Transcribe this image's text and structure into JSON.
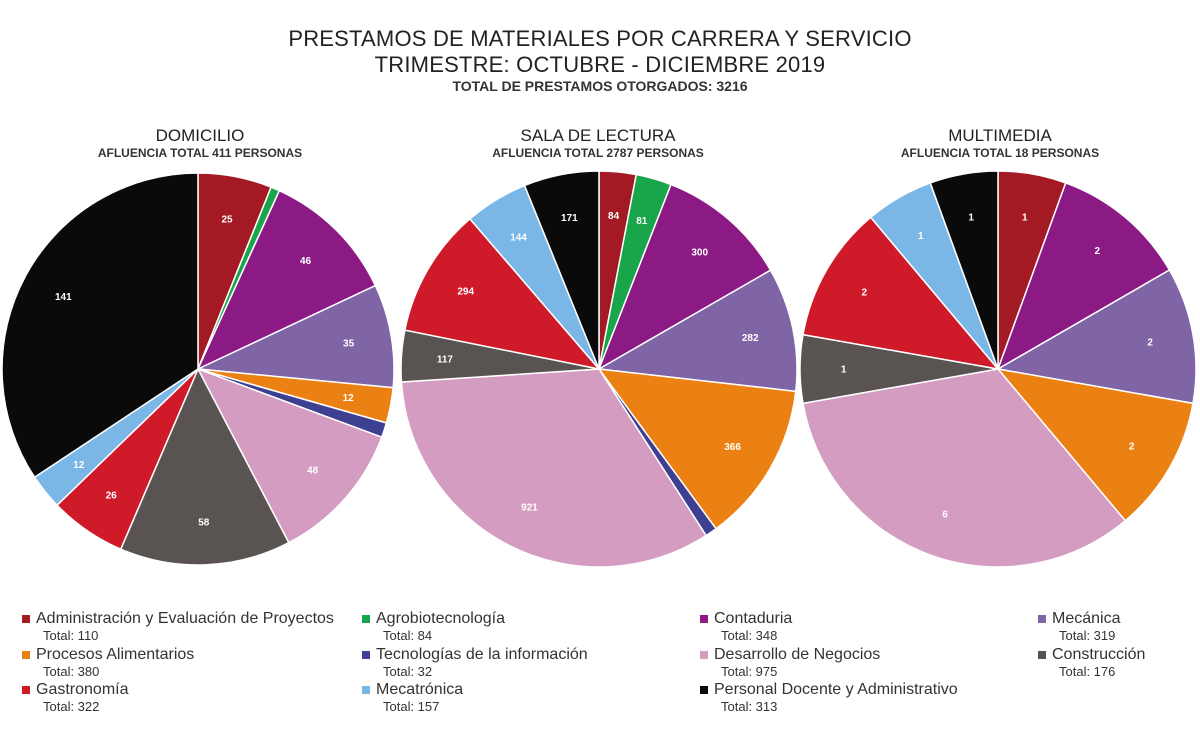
{
  "header": {
    "title_line1": "PRESTAMOS DE MATERIALES POR CARRERA Y SERVICIO",
    "title_line2": "TRIMESTRE: OCTUBRE - DICIEMBRE 2019",
    "subtitle": "TOTAL DE PRESTAMOS OTORGADOS: 3216"
  },
  "legend": [
    {
      "name": "Administración y Evaluación de Proyectos",
      "total": "Total: 110",
      "color": "#a31a24"
    },
    {
      "name": "Agrobiotecnología",
      "total": "Total: 84",
      "color": "#19a54a"
    },
    {
      "name": "Contaduria",
      "total": "Total: 348",
      "color": "#8b1a85"
    },
    {
      "name": "Mecánica",
      "total": "Total: 319",
      "color": "#7f64a6"
    },
    {
      "name": "Procesos Alimentarios",
      "total": "Total: 380",
      "color": "#ec8113"
    },
    {
      "name": "Tecnologías de la información",
      "total": "Total: 32",
      "color": "#3e3f91"
    },
    {
      "name": "Desarrollo de Negocios",
      "total": "Total: 975",
      "color": "#d49cc1"
    },
    {
      "name": "Construcción",
      "total": "Total: 176",
      "color": "#595451"
    },
    {
      "name": "Gastronomía",
      "total": "Total: 322",
      "color": "#cf1a29"
    },
    {
      "name": "Mecatrónica",
      "total": "Total: 157",
      "color": "#7ab6e6"
    },
    {
      "name": "Personal Docente y Administrativo",
      "total": "Total: 313",
      "color": "#0a0a0a"
    }
  ],
  "chart_data": [
    {
      "type": "pie",
      "title": "DOMICILIO",
      "subtitle": "AFLUENCIA TOTAL 411 PERSONAS",
      "categories": [
        "Administración y Evaluación de Proyectos",
        "Agrobiotecnología",
        "Contaduria",
        "Mecánica",
        "Procesos Alimentarios",
        "Tecnologías de la información",
        "Desarrollo de Negocios",
        "Construcción",
        "Gastronomía",
        "Mecatrónica",
        "Personal Docente y Administrativo"
      ],
      "values": [
        25,
        3,
        46,
        35,
        12,
        5,
        48,
        58,
        26,
        12,
        141
      ],
      "data_labels": [
        "25",
        "",
        "46",
        "35",
        "12",
        "",
        "48",
        "58",
        "26",
        "12",
        "141"
      ]
    },
    {
      "type": "pie",
      "title": "SALA DE LECTURA",
      "subtitle": "AFLUENCIA TOTAL 2787 PERSONAS",
      "categories": [
        "Administración y Evaluación de Proyectos",
        "Agrobiotecnología",
        "Contaduria",
        "Mecánica",
        "Procesos Alimentarios",
        "Tecnologías de la información",
        "Desarrollo de Negocios",
        "Construcción",
        "Gastronomía",
        "Mecatrónica",
        "Personal Docente y Administrativo"
      ],
      "values": [
        84,
        81,
        300,
        282,
        366,
        27,
        921,
        117,
        294,
        144,
        171
      ],
      "data_labels": [
        "84",
        "81",
        "300",
        "282",
        "366",
        "",
        "921",
        "117",
        "294",
        "144",
        "171"
      ]
    },
    {
      "type": "pie",
      "title": "MULTIMEDIA",
      "subtitle": "AFLUENCIA TOTAL 18 PERSONAS",
      "categories": [
        "Administración y Evaluación de Proyectos",
        "Agrobiotecnología",
        "Contaduria",
        "Mecánica",
        "Procesos Alimentarios",
        "Tecnologías de la información",
        "Desarrollo de Negocios",
        "Construcción",
        "Gastronomía",
        "Mecatrónica",
        "Personal Docente y Administrativo"
      ],
      "values": [
        1,
        0,
        2,
        2,
        2,
        0,
        6,
        1,
        2,
        1,
        1
      ],
      "data_labels": [
        "1",
        "",
        "2",
        "2",
        "2",
        "",
        "6",
        "1",
        "2",
        "1",
        "1"
      ]
    }
  ]
}
